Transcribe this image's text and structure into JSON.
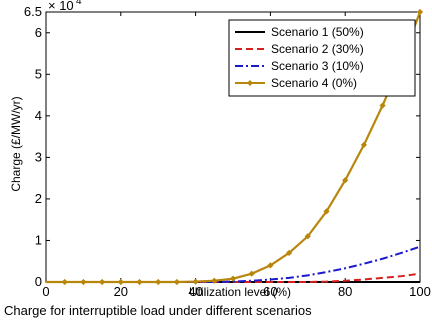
{
  "caption": "Charge for interruptible load under different scenarios",
  "chart_data": {
    "type": "line",
    "xlabel": "Utilization level (%)",
    "ylabel": "Charge (£/MW/yr)",
    "exponent_label": "× 10",
    "exponent_power": "4",
    "xlim": [
      0,
      100
    ],
    "ylim": [
      0,
      65000
    ],
    "x_ticks": [
      0,
      20,
      40,
      60,
      80,
      100
    ],
    "y_ticks": [
      0,
      10000,
      20000,
      30000,
      40000,
      50000,
      60000,
      65000
    ],
    "y_tick_labels": [
      "0",
      "1",
      "2",
      "3",
      "4",
      "5",
      "6",
      "6.5"
    ],
    "grid": false,
    "legend_position": "top-right",
    "x": [
      5,
      10,
      15,
      20,
      25,
      30,
      35,
      40,
      45,
      50,
      55,
      60,
      65,
      70,
      75,
      80,
      85,
      90,
      95,
      100
    ],
    "series": [
      {
        "name": "Scenario 1 (50%)",
        "color": "#000000",
        "style": "solid",
        "values": [
          0,
          0,
          0,
          0,
          0,
          0,
          0,
          0,
          0,
          0,
          0,
          0,
          0,
          0,
          0,
          0,
          0,
          0,
          0,
          0
        ]
      },
      {
        "name": "Scenario 2 (30%)",
        "color": "#d62020",
        "style": "dashed",
        "values": [
          0,
          0,
          0,
          0,
          0,
          0,
          0,
          0,
          0,
          0,
          0,
          0,
          0,
          0,
          100,
          300,
          600,
          1000,
          1400,
          2000
        ]
      },
      {
        "name": "Scenario 3 (10%)",
        "color": "#1a1acc",
        "style": "dashdot",
        "values": [
          0,
          0,
          0,
          0,
          0,
          0,
          0,
          0,
          0,
          100,
          300,
          600,
          1000,
          1600,
          2400,
          3300,
          4400,
          5600,
          7000,
          8500
        ]
      },
      {
        "name": "Scenario 4 (0%)",
        "color": "#b8860b",
        "style": "solid-diamond",
        "values": [
          0,
          0,
          0,
          0,
          0,
          0,
          0,
          100,
          300,
          800,
          2000,
          4000,
          7000,
          11000,
          17000,
          24500,
          33000,
          42500,
          53000,
          65000
        ]
      }
    ]
  }
}
